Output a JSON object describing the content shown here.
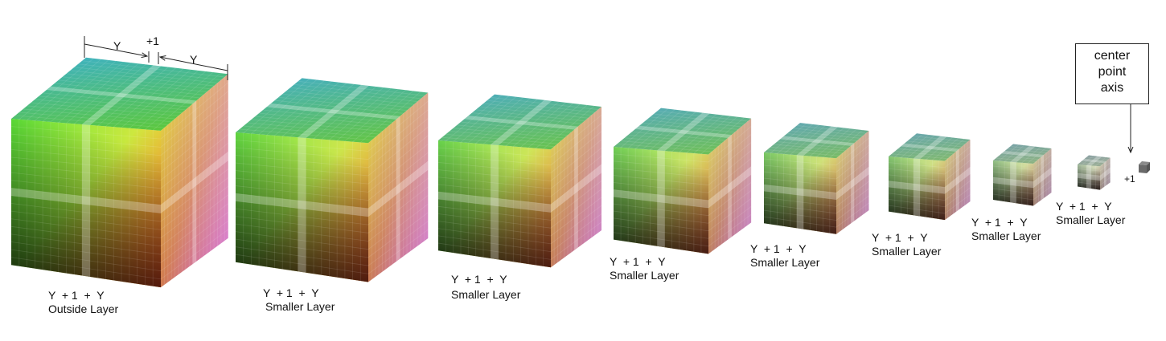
{
  "dimension": {
    "left_label": "Y",
    "middle_label": "+1",
    "right_label": "Y"
  },
  "callout": {
    "lines": [
      "center",
      "point",
      "axis"
    ]
  },
  "center_label": "+1",
  "layers": [
    {
      "formula": "Y  + 1  +  Y",
      "name": "Outside Layer"
    },
    {
      "formula": "Y  + 1  +  Y",
      "name": "Smaller Layer"
    },
    {
      "formula": "Y  + 1  +  Y",
      "name": "Smaller Layer"
    },
    {
      "formula": "Y  + 1  +  Y",
      "name": "Smaller Layer"
    },
    {
      "formula": "Y  + 1  +  Y",
      "name": "Smaller Layer"
    },
    {
      "formula": "Y  + 1  +  Y",
      "name": "Smaller Layer"
    },
    {
      "formula": "Y  + 1  +  Y",
      "name": "Smaller Layer"
    },
    {
      "formula": "Y  + 1  +  Y",
      "name": "Smaller Layer"
    }
  ],
  "colors": {
    "green": "#5fe83a",
    "yellow": "#e8e840",
    "red": "#d83a1e",
    "magenta": "#c22ccc",
    "teal": "#3fb2bd",
    "black": "#000000"
  }
}
